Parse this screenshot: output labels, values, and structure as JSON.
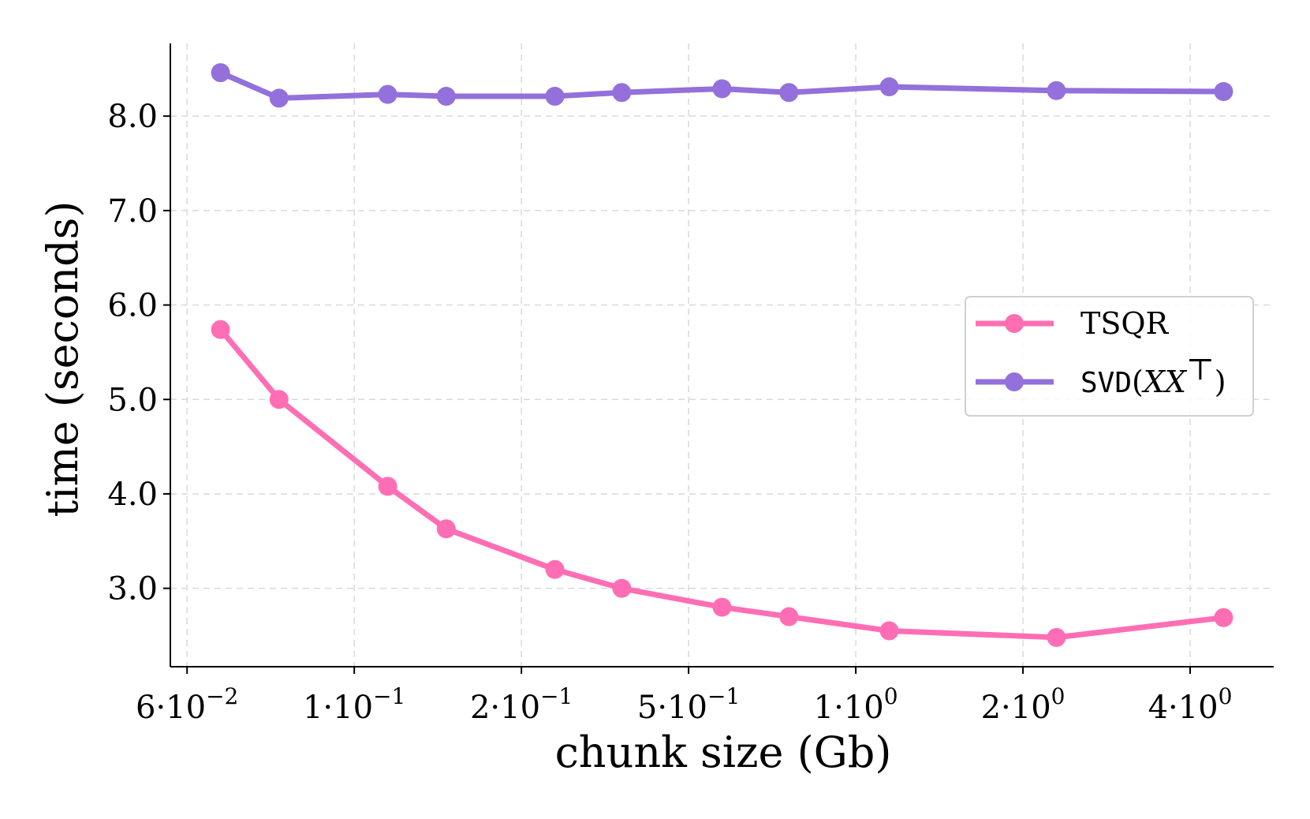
{
  "chart_data": {
    "type": "line",
    "title": "",
    "xlabel": "chunk size (Gb)",
    "ylabel": "time (seconds)",
    "x_scale": "categorical-log",
    "x_ticks": [
      {
        "mantissa": "6",
        "exponent": "−2"
      },
      {
        "mantissa": "1",
        "exponent": "−1"
      },
      {
        "mantissa": "2",
        "exponent": "−1"
      },
      {
        "mantissa": "5",
        "exponent": "−1"
      },
      {
        "mantissa": "1",
        "exponent": "0"
      },
      {
        "mantissa": "2",
        "exponent": "0"
      },
      {
        "mantissa": "4",
        "exponent": "0"
      }
    ],
    "x_tick_positions": [
      0.0,
      1.0,
      2.0,
      3.0,
      4.0,
      5.0,
      6.0
    ],
    "x_range": [
      -0.1,
      6.5
    ],
    "y_ticks": [
      "3.0",
      "4.0",
      "5.0",
      "6.0",
      "7.0",
      "8.0"
    ],
    "y_tick_values": [
      3,
      4,
      5,
      6,
      7,
      8
    ],
    "ylim": [
      2.17,
      8.77
    ],
    "grid": true,
    "legend_position": "center-right",
    "x": [
      0.2,
      0.55,
      1.2,
      1.55,
      2.2,
      2.6,
      3.2,
      3.6,
      4.2,
      5.2,
      6.2
    ],
    "series": [
      {
        "name": "TSQR",
        "color": "#ff6eb4",
        "values": [
          5.74,
          5.0,
          4.08,
          3.63,
          3.2,
          3.0,
          2.8,
          2.7,
          2.55,
          2.48,
          2.69
        ]
      },
      {
        "name": "SVD",
        "name_math": "XX",
        "name_sup": "⊤",
        "color": "#9370db",
        "values": [
          8.46,
          8.19,
          8.23,
          8.21,
          8.21,
          8.25,
          8.29,
          8.25,
          8.31,
          8.27,
          8.26
        ]
      }
    ]
  }
}
